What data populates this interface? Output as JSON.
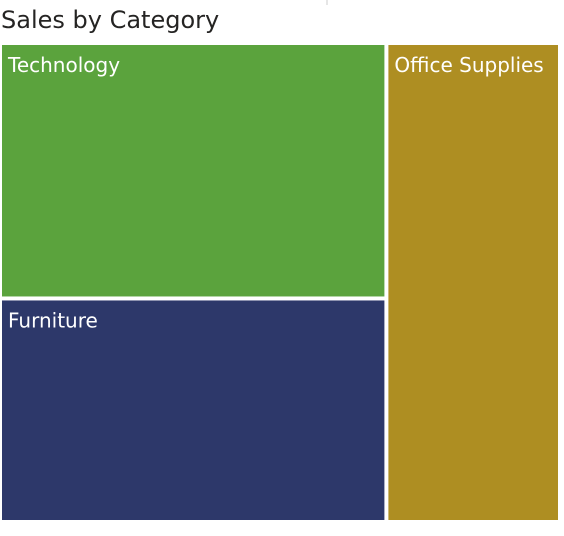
{
  "chart_data": {
    "type": "treemap",
    "title": "Sales by Category",
    "categories": [
      "Technology",
      "Furniture",
      "Office Supplies"
    ],
    "values": [
      0.368,
      0.322,
      0.31
    ],
    "colors": {
      "Technology": "#5BA33D",
      "Furniture": "#2D386A",
      "Office Supplies": "#AE8E22"
    },
    "legend": "none",
    "grid": false
  }
}
